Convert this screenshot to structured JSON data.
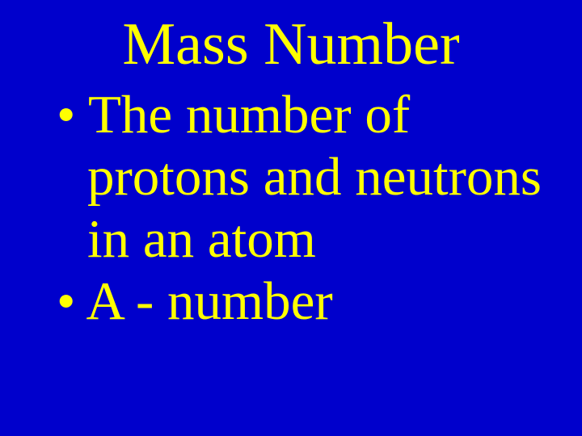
{
  "slide": {
    "title": "Mass Number",
    "background_color": "#0000cc",
    "text_color": "#ffff00",
    "title_fontsize": 74,
    "body_fontsize": 67,
    "font_family": "Times New Roman",
    "bullets": [
      {
        "marker": "•",
        "text": "The number of protons and neutrons in an atom"
      },
      {
        "marker": "•",
        "text": "A - number"
      }
    ]
  }
}
